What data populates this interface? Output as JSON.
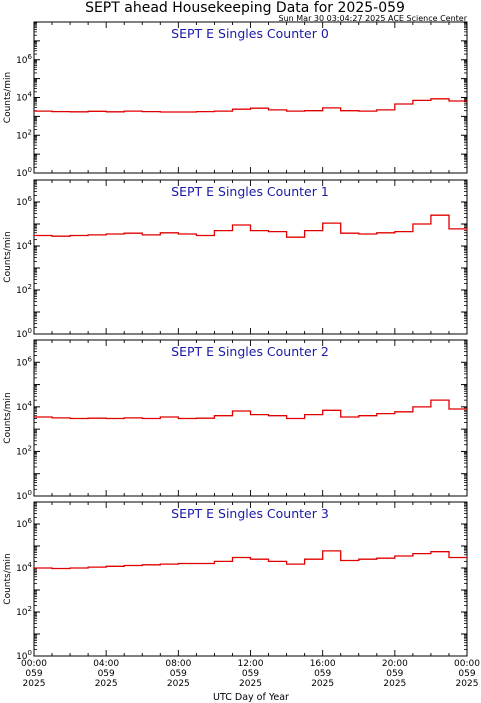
{
  "header": {
    "title": "SEPT ahead Housekeeping Data for 2025-059",
    "timestamp": "Sun Mar 30 03:04:27 2025 ACE Science Center"
  },
  "chart_data": [
    {
      "type": "line",
      "title": "SEPT E Singles Counter 0",
      "ylabel": "Counts/min",
      "yscale": "log",
      "ylim": [
        1,
        100000000
      ],
      "yticks": [
        "10^0",
        "10^2",
        "10^4",
        "10^6"
      ],
      "x": [
        0,
        1,
        2,
        3,
        4,
        5,
        6,
        7,
        8,
        9,
        10,
        11,
        12,
        13,
        14,
        15,
        16,
        17,
        18,
        19,
        20,
        21,
        22,
        23,
        24
      ],
      "values": [
        1900,
        1800,
        1750,
        1850,
        1750,
        1900,
        1800,
        1700,
        1700,
        1800,
        1900,
        2400,
        2700,
        2200,
        1900,
        2000,
        2800,
        2000,
        1900,
        2200,
        4500,
        7000,
        8500,
        6500,
        6800
      ]
    },
    {
      "type": "line",
      "title": "SEPT E Singles Counter 1",
      "ylabel": "Counts/min",
      "yscale": "log",
      "ylim": [
        1,
        10000000
      ],
      "yticks": [
        "10^0",
        "10^2",
        "10^4",
        "10^6"
      ],
      "x": [
        0,
        1,
        2,
        3,
        4,
        5,
        6,
        7,
        8,
        9,
        10,
        11,
        12,
        13,
        14,
        15,
        16,
        17,
        18,
        19,
        20,
        21,
        22,
        23,
        24
      ],
      "values": [
        30000,
        28000,
        30000,
        32000,
        35000,
        38000,
        32000,
        40000,
        35000,
        30000,
        50000,
        90000,
        50000,
        45000,
        25000,
        50000,
        110000,
        38000,
        35000,
        40000,
        45000,
        100000,
        250000,
        60000,
        50000
      ]
    },
    {
      "type": "line",
      "title": "SEPT E Singles Counter 2",
      "ylabel": "Counts/min",
      "yscale": "log",
      "ylim": [
        1,
        10000000
      ],
      "yticks": [
        "10^0",
        "10^2",
        "10^4",
        "10^6"
      ],
      "x": [
        0,
        1,
        2,
        3,
        4,
        5,
        6,
        7,
        8,
        9,
        10,
        11,
        12,
        13,
        14,
        15,
        16,
        17,
        18,
        19,
        20,
        21,
        22,
        23,
        24
      ],
      "values": [
        3500,
        3200,
        3000,
        3100,
        3000,
        3200,
        3000,
        3500,
        3000,
        3100,
        4000,
        6500,
        4500,
        4000,
        3000,
        4500,
        7000,
        3500,
        4000,
        5000,
        6000,
        10000,
        20000,
        8000,
        8500
      ]
    },
    {
      "type": "line",
      "title": "SEPT E Singles Counter 3",
      "ylabel": "Counts/min",
      "yscale": "log",
      "ylim": [
        1,
        10000000
      ],
      "yticks": [
        "10^0",
        "10^2",
        "10^4",
        "10^6"
      ],
      "x": [
        0,
        1,
        2,
        3,
        4,
        5,
        6,
        7,
        8,
        9,
        10,
        11,
        12,
        13,
        14,
        15,
        16,
        17,
        18,
        19,
        20,
        21,
        22,
        23,
        24
      ],
      "values": [
        10000,
        9500,
        10000,
        11000,
        12000,
        13000,
        14000,
        15000,
        16000,
        16000,
        20000,
        30000,
        25000,
        20000,
        15000,
        25000,
        60000,
        22000,
        25000,
        28000,
        35000,
        45000,
        55000,
        30000,
        28000
      ]
    }
  ],
  "xaxis": {
    "title": "UTC Day of Year",
    "ticks": [
      {
        "hour": 0,
        "time": "00:00",
        "doy": "059",
        "year": "2025"
      },
      {
        "hour": 4,
        "time": "04:00",
        "doy": "059",
        "year": "2025"
      },
      {
        "hour": 8,
        "time": "08:00",
        "doy": "059",
        "year": "2025"
      },
      {
        "hour": 12,
        "time": "12:00",
        "doy": "059",
        "year": "2025"
      },
      {
        "hour": 16,
        "time": "16:00",
        "doy": "059",
        "year": "2025"
      },
      {
        "hour": 20,
        "time": "20:00",
        "doy": "059",
        "year": "2025"
      },
      {
        "hour": 24,
        "time": "00:00",
        "doy": "059",
        "year": "2025"
      }
    ]
  },
  "colors": {
    "series": "#e00000",
    "panel_title": "#1a1aa6",
    "axis": "#000000"
  }
}
